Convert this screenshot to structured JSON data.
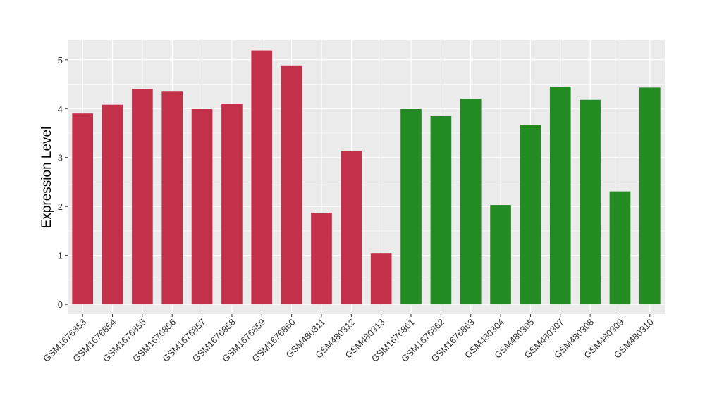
{
  "chart_data": {
    "type": "bar",
    "title": "",
    "xlabel": "",
    "ylabel": "Expression Level",
    "ylim": [
      -0.2,
      5.4
    ],
    "yticks": [
      0,
      1,
      2,
      3,
      4,
      5
    ],
    "grid": true,
    "legend": "none",
    "categories": [
      "GSM1676853",
      "GSM1676854",
      "GSM1676855",
      "GSM1676856",
      "GSM1676857",
      "GSM1676858",
      "GSM1676859",
      "GSM1676860",
      "GSM480311",
      "GSM480312",
      "GSM480313",
      "GSM1676861",
      "GSM1676862",
      "GSM1676863",
      "GSM480304",
      "GSM480305",
      "GSM480307",
      "GSM480308",
      "GSM480309",
      "GSM480310"
    ],
    "values": [
      3.9,
      4.08,
      4.4,
      4.36,
      3.99,
      4.09,
      5.19,
      4.87,
      1.87,
      3.14,
      1.05,
      3.99,
      3.86,
      4.2,
      2.03,
      3.67,
      4.45,
      4.18,
      2.31,
      4.43
    ],
    "groups": [
      0,
      0,
      0,
      0,
      0,
      0,
      0,
      0,
      0,
      0,
      0,
      1,
      1,
      1,
      1,
      1,
      1,
      1,
      1,
      1
    ],
    "colors": {
      "group0": "#c3304a",
      "group1": "#228b22",
      "panel": "#ebebeb",
      "grid": "#ffffff"
    }
  }
}
